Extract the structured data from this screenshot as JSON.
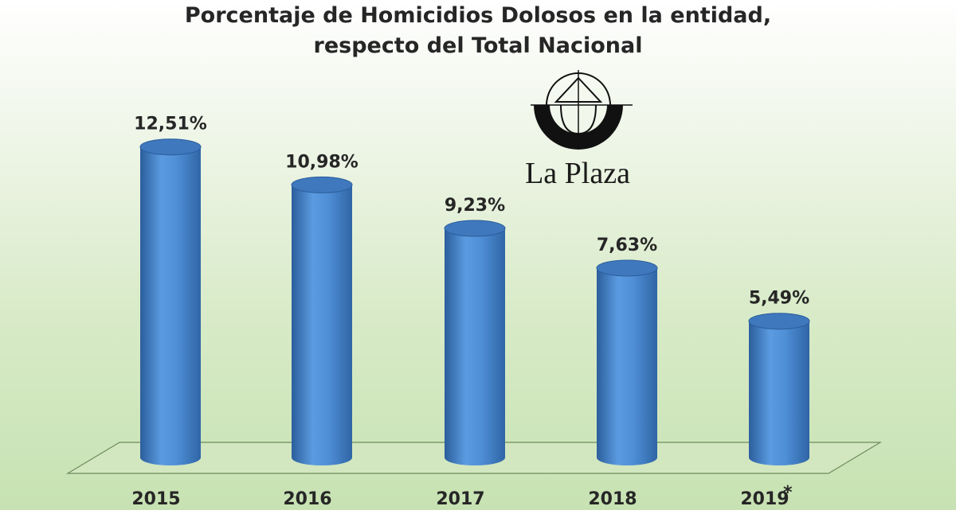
{
  "chart_data": {
    "type": "bar",
    "title": "Porcentaje de Homicidios Dolosos en la entidad,",
    "subtitle": "respecto del Total Nacional",
    "categories": [
      "2015",
      "2016",
      "2017",
      "2018",
      "2019"
    ],
    "values": [
      12.51,
      10.98,
      9.23,
      7.63,
      5.49
    ],
    "value_labels": [
      "12,51%",
      "10,98%",
      "9,23%",
      "7,63%",
      "5,49%"
    ],
    "footnote_marker": "*",
    "xlabel": "",
    "ylabel": "",
    "ylim": [
      0,
      14
    ],
    "grid": false,
    "legend": "none",
    "bar_style": "3d-cylinder",
    "colors": {
      "bar": "#4f8fd6",
      "bar_dark": "#2b5e9c",
      "bar_top": "#3f78bd",
      "text": "#262626"
    }
  },
  "watermark": {
    "text": "La Plaza",
    "icon": "la-plaza-logo-icon"
  }
}
